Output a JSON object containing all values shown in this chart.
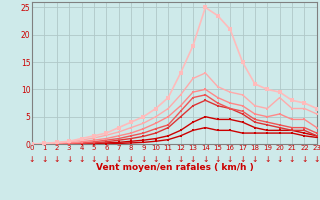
{
  "x": [
    0,
    1,
    2,
    3,
    4,
    5,
    6,
    7,
    8,
    9,
    10,
    11,
    12,
    13,
    14,
    15,
    16,
    17,
    18,
    19,
    20,
    21,
    22,
    23
  ],
  "lines": [
    {
      "y": [
        0,
        0,
        0,
        0,
        0,
        0,
        0,
        0.1,
        0.2,
        0.3,
        0.5,
        0.8,
        1.5,
        2.5,
        3.0,
        2.5,
        2.5,
        2.0,
        2.0,
        2.0,
        2.0,
        2.0,
        1.5,
        1.2
      ],
      "color": "#cc0000",
      "lw": 1.0,
      "marker": "s",
      "ms": 2.0
    },
    {
      "y": [
        0,
        0,
        0,
        0,
        0,
        0.1,
        0.2,
        0.3,
        0.5,
        0.7,
        1.0,
        1.5,
        2.5,
        4.0,
        5.0,
        4.5,
        4.5,
        4.0,
        3.0,
        2.5,
        2.5,
        2.5,
        2.0,
        1.5
      ],
      "color": "#cc0000",
      "lw": 1.0,
      "marker": "s",
      "ms": 2.0
    },
    {
      "y": [
        0,
        0,
        0,
        0,
        0.1,
        0.2,
        0.4,
        0.7,
        1.0,
        1.4,
        2.0,
        3.0,
        5.0,
        7.0,
        8.0,
        7.0,
        6.5,
        5.5,
        4.0,
        3.5,
        3.0,
        2.5,
        2.5,
        1.5
      ],
      "color": "#dd3333",
      "lw": 1.0,
      "marker": "s",
      "ms": 2.0
    },
    {
      "y": [
        0,
        0,
        0,
        0,
        0.2,
        0.4,
        0.7,
        1.0,
        1.5,
        2.0,
        2.8,
        3.5,
        6.0,
        8.5,
        9.0,
        7.5,
        6.5,
        6.0,
        4.5,
        4.0,
        3.5,
        3.0,
        3.0,
        2.0
      ],
      "color": "#ee5555",
      "lw": 1.0,
      "marker": "s",
      "ms": 2.0
    },
    {
      "y": [
        0,
        0,
        0.1,
        0.2,
        0.4,
        0.7,
        1.0,
        1.5,
        2.0,
        2.8,
        3.8,
        5.0,
        7.0,
        9.5,
        10.0,
        8.5,
        7.5,
        7.0,
        5.5,
        5.0,
        5.5,
        4.5,
        4.5,
        3.0
      ],
      "color": "#ff8888",
      "lw": 1.0,
      "marker": "s",
      "ms": 2.0
    },
    {
      "y": [
        0,
        0.1,
        0.2,
        0.4,
        0.7,
        1.1,
        1.6,
        2.2,
        3.0,
        3.8,
        5.0,
        6.5,
        9.0,
        12.0,
        13.0,
        10.5,
        9.5,
        9.0,
        7.0,
        6.5,
        8.5,
        6.5,
        6.5,
        5.5
      ],
      "color": "#ffaaaa",
      "lw": 1.0,
      "marker": "s",
      "ms": 2.0
    },
    {
      "y": [
        0,
        0.1,
        0.3,
        0.5,
        1.0,
        1.5,
        2.0,
        3.0,
        4.0,
        5.0,
        6.5,
        8.5,
        13.0,
        18.0,
        25.0,
        23.5,
        21.0,
        15.0,
        11.0,
        10.0,
        9.5,
        8.0,
        7.5,
        6.5
      ],
      "color": "#ffbbbb",
      "lw": 1.2,
      "marker": "s",
      "ms": 2.2
    }
  ],
  "xlabel": "Vent moyen/en rafales ( km/h )",
  "yticks": [
    0,
    5,
    10,
    15,
    20,
    25
  ],
  "xticks": [
    0,
    1,
    2,
    3,
    4,
    5,
    6,
    7,
    8,
    9,
    10,
    11,
    12,
    13,
    14,
    15,
    16,
    17,
    18,
    19,
    20,
    21,
    22,
    23
  ],
  "xlim": [
    0,
    23
  ],
  "ylim": [
    0,
    26
  ],
  "bg_color": "#ceeaea",
  "grid_color": "#b0c8c8",
  "tick_color": "#cc0000",
  "label_color": "#cc0000",
  "axis_color": "#808080"
}
